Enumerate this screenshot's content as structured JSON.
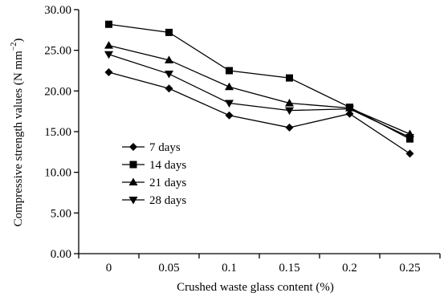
{
  "chart_data": {
    "type": "line",
    "x": [
      "0",
      "0.05",
      "0.1",
      "0.15",
      "0.2",
      "0.25"
    ],
    "xlabel": "Crushed waste glass content (%)",
    "ylabel": "Compressive strength values (N mm",
    "ylabel_sup": "−2",
    "ylabel_close": ")",
    "ylim": [
      0,
      30
    ],
    "yticks": [
      "0.00",
      "5.00",
      "10.00",
      "15.00",
      "20.00",
      "25.00",
      "30.00"
    ],
    "grid": false,
    "legend_position": "left-center",
    "series": [
      {
        "name": "7 days",
        "marker": "diamond",
        "values": [
          22.3,
          20.3,
          17.0,
          15.5,
          17.2,
          12.3
        ]
      },
      {
        "name": "14 days",
        "marker": "square",
        "values": [
          28.2,
          27.2,
          22.5,
          21.6,
          18.0,
          14.1
        ]
      },
      {
        "name": "21 days",
        "marker": "triangle-up",
        "values": [
          25.6,
          23.8,
          20.5,
          18.5,
          17.9,
          14.7
        ]
      },
      {
        "name": "28 days",
        "marker": "triangle-down",
        "values": [
          24.5,
          22.1,
          18.5,
          17.6,
          17.8,
          14.3
        ]
      }
    ]
  }
}
